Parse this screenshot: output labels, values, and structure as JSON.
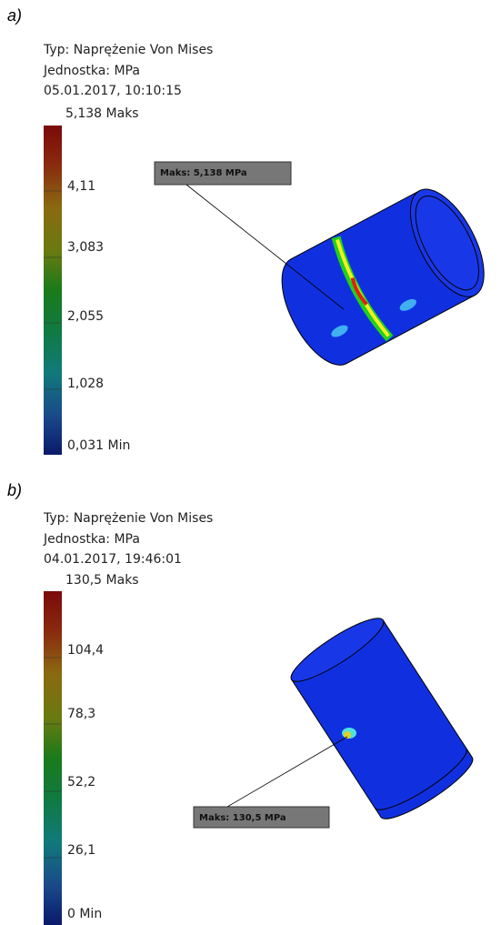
{
  "panels": [
    {
      "label": "a)",
      "type_line": "Typ: Naprężenie Von Mises",
      "unit_line": "Jednostka: MPa",
      "date_line": "05.01.2017, 10:10:15",
      "max_label": "5,138 Maks",
      "ticks": [
        "4,11",
        "3,083",
        "2,055",
        "1,028"
      ],
      "min_label": "0,031 Min",
      "callout": "Maks: 5,138 MPa"
    },
    {
      "label": "b)",
      "type_line": "Typ: Naprężenie Von Mises",
      "unit_line": "Jednostka: MPa",
      "date_line": "04.01.2017, 19:46:01",
      "max_label": "130,5 Maks",
      "ticks": [
        "104,4",
        "78,3",
        "52,2",
        "26,1"
      ],
      "min_label": "0 Min",
      "callout": "Maks: 130,5 MPa"
    }
  ]
}
